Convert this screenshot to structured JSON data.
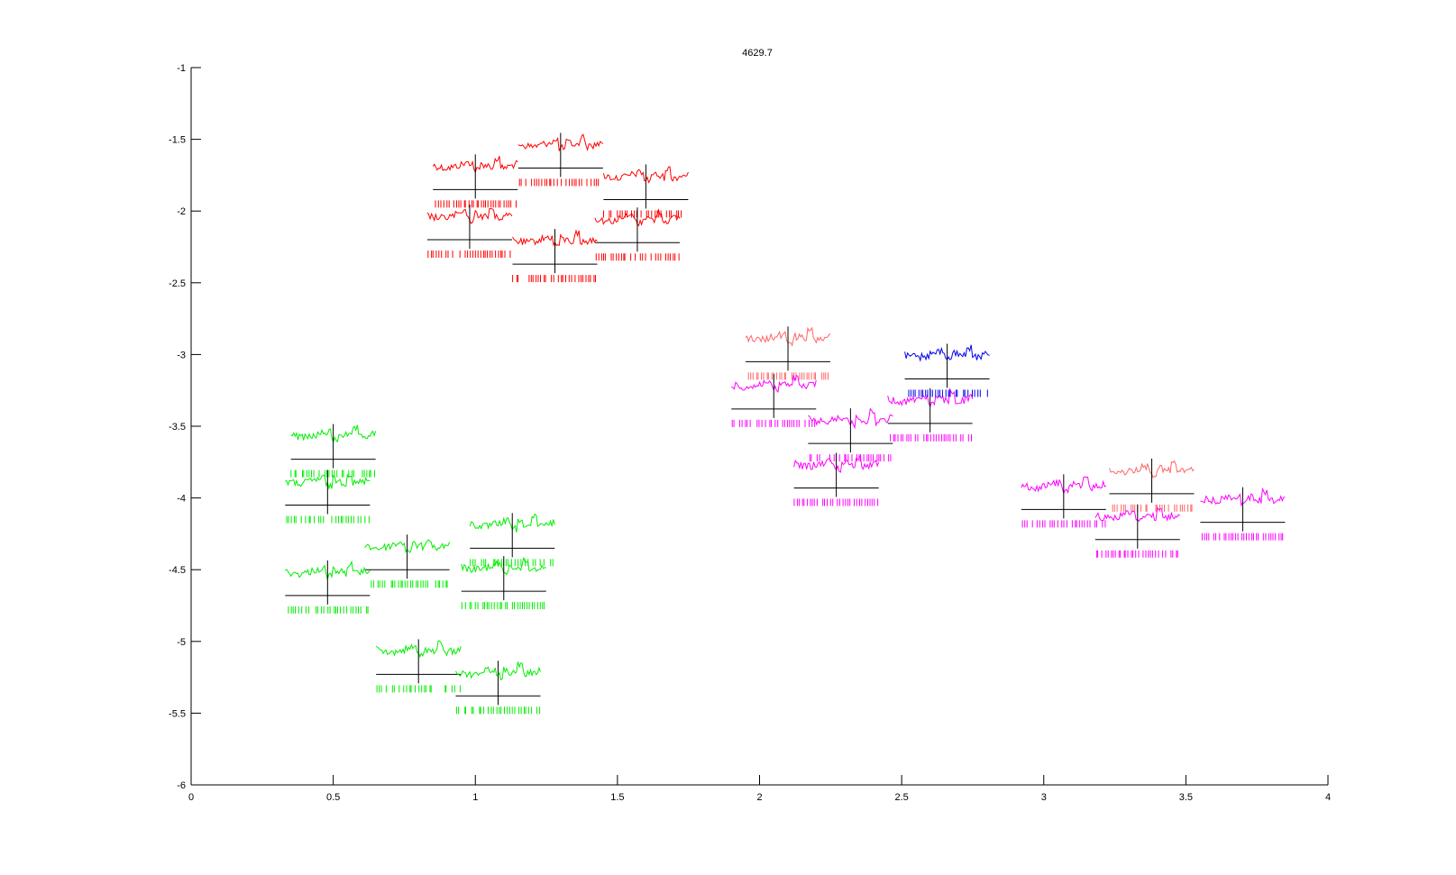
{
  "chart_data": {
    "type": "scatter",
    "title": "4629.7",
    "xlabel": "",
    "ylabel": "",
    "xlim": [
      0,
      4
    ],
    "ylim": [
      -6,
      -1
    ],
    "xticks": [
      "0",
      "0.5",
      "1",
      "1.5",
      "2",
      "2.5",
      "3",
      "3.5",
      "4"
    ],
    "yticks": [
      "-1",
      "-1.5",
      "-2",
      "-2.5",
      "-3",
      "-3.5",
      "-4",
      "-4.5",
      "-5",
      "-5.5",
      "-6"
    ],
    "grid": false,
    "legend": "none",
    "colors": {
      "red": "#ff0000",
      "green": "#00ee00",
      "magenta": "#ff00ff",
      "blue": "#0000ee",
      "salmon": "#ff6666",
      "axis": "#000000"
    },
    "clusters": [
      {
        "color": "red",
        "points": [
          [
            1.0,
            -1.85
          ],
          [
            1.3,
            -1.7
          ],
          [
            1.6,
            -1.92
          ],
          [
            0.98,
            -2.2
          ],
          [
            1.28,
            -2.37
          ],
          [
            1.57,
            -2.22
          ]
        ]
      },
      {
        "color": "green",
        "points": [
          [
            0.5,
            -3.73
          ],
          [
            0.48,
            -4.05
          ],
          [
            0.76,
            -4.5
          ],
          [
            0.48,
            -4.68
          ],
          [
            1.13,
            -4.35
          ],
          [
            1.1,
            -4.65
          ],
          [
            0.8,
            -5.23
          ],
          [
            1.08,
            -5.38
          ]
        ]
      },
      {
        "color": "salmon",
        "points": [
          [
            2.1,
            -3.05
          ],
          [
            3.38,
            -3.97
          ]
        ]
      },
      {
        "color": "magenta",
        "points": [
          [
            2.05,
            -3.38
          ],
          [
            2.32,
            -3.62
          ],
          [
            2.6,
            -3.48
          ],
          [
            2.27,
            -3.93
          ],
          [
            3.07,
            -4.08
          ],
          [
            3.33,
            -4.29
          ],
          [
            3.7,
            -4.17
          ]
        ]
      },
      {
        "color": "blue",
        "points": [
          [
            2.66,
            -3.17
          ]
        ]
      }
    ]
  }
}
